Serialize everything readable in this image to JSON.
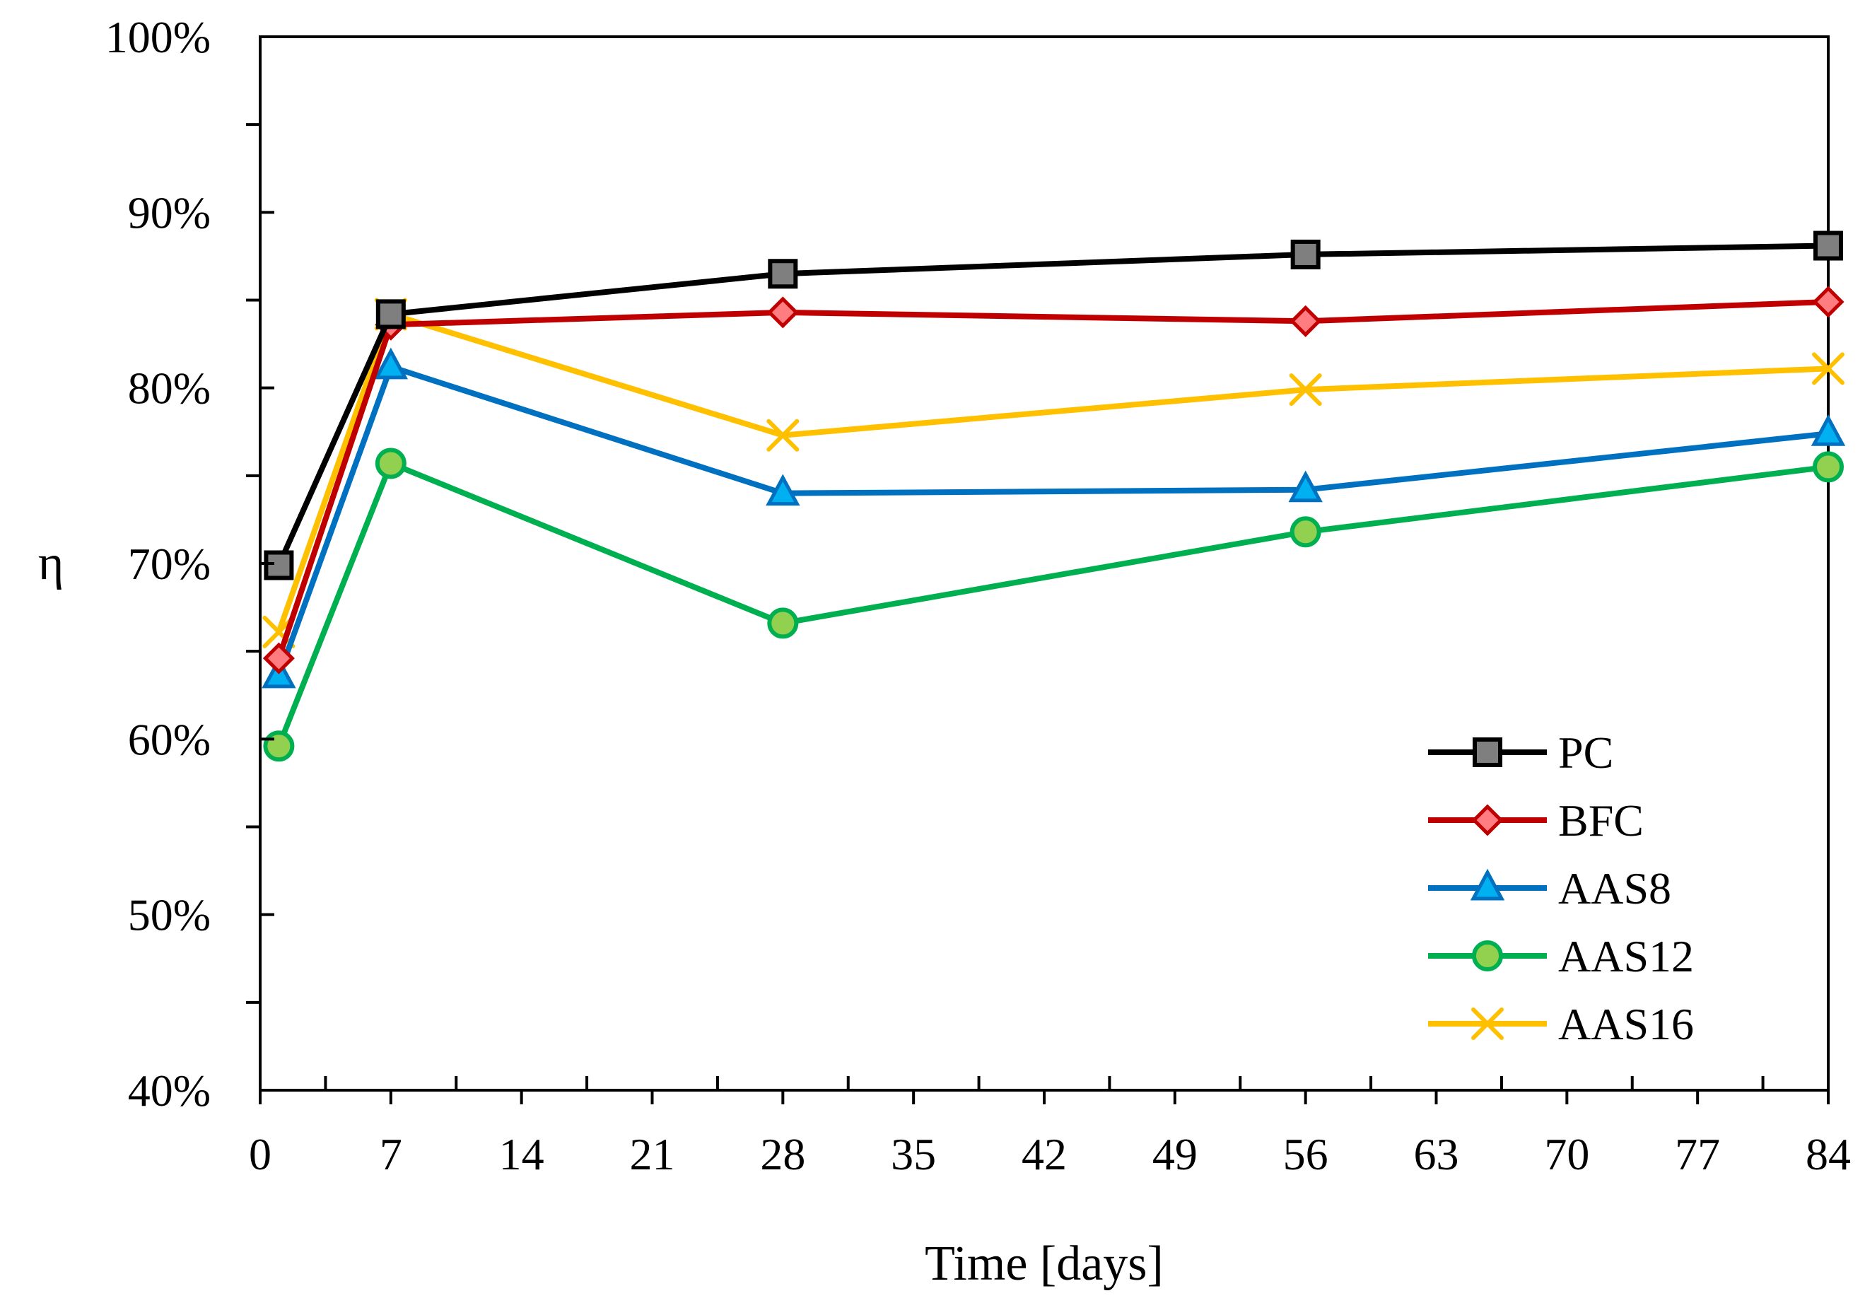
{
  "chart_data": {
    "type": "line",
    "title": "",
    "xlabel": "Time [days]",
    "ylabel": "η",
    "xlim": [
      0,
      84
    ],
    "ylim": [
      0.4,
      1.0
    ],
    "xticks": [
      0,
      7,
      14,
      21,
      28,
      35,
      42,
      49,
      56,
      63,
      70,
      77,
      84
    ],
    "xtick_labels": [
      "0",
      "7",
      "14",
      "21",
      "28",
      "35",
      "42",
      "49",
      "56",
      "63",
      "70",
      "77",
      "84"
    ],
    "yticks": [
      0.4,
      0.5,
      0.6,
      0.7,
      0.8,
      0.9,
      1.0
    ],
    "ytick_labels": [
      "40%",
      "50%",
      "60%",
      "70%",
      "80%",
      "90%",
      "100%"
    ],
    "grid": false,
    "legend_position": "bottom-right",
    "x": [
      1,
      7,
      28,
      56,
      84
    ],
    "series": [
      {
        "name": "PC",
        "marker": "square",
        "color": "#000000",
        "marker_fill": "#7f7f7f",
        "values": [
          0.699,
          0.842,
          0.865,
          0.876,
          0.881
        ]
      },
      {
        "name": "BFC",
        "marker": "diamond",
        "color": "#c00000",
        "marker_fill": "#ff7c80",
        "values": [
          0.646,
          0.836,
          0.843,
          0.838,
          0.849
        ]
      },
      {
        "name": "AAS8",
        "marker": "triangle",
        "color": "#0070c0",
        "marker_fill": "#00b0f0",
        "values": [
          0.636,
          0.812,
          0.74,
          0.742,
          0.774
        ]
      },
      {
        "name": "AAS12",
        "marker": "circle",
        "color": "#00b050",
        "marker_fill": "#92d050",
        "values": [
          0.596,
          0.757,
          0.666,
          0.718,
          0.755
        ]
      },
      {
        "name": "AAS16",
        "marker": "x",
        "color": "#ffc000",
        "marker_fill": "#ffc000",
        "values": [
          0.661,
          0.842,
          0.773,
          0.799,
          0.811
        ]
      }
    ]
  }
}
